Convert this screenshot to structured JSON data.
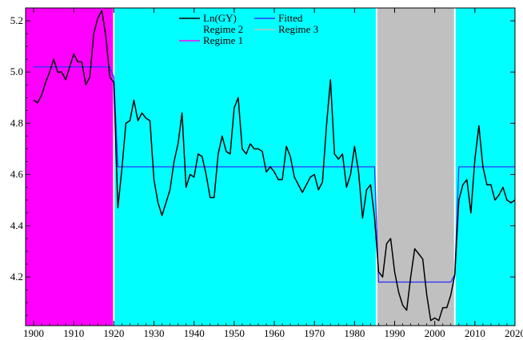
{
  "chart_data": {
    "type": "line",
    "title": "",
    "xlabel": "",
    "ylabel": "",
    "xlim": [
      1898,
      2020
    ],
    "ylim": [
      4.01,
      5.25
    ],
    "x_ticks": [
      1900,
      1910,
      1920,
      1930,
      1940,
      1950,
      1960,
      1970,
      1980,
      1990,
      2000,
      2010,
      2020
    ],
    "y_ticks": [
      4.2,
      4.4,
      4.6,
      4.8,
      5.0,
      5.2
    ],
    "y_tick_labels": [
      "4.2",
      "4.4",
      "4.6",
      "4.8",
      "5.0",
      "5.2"
    ],
    "grid": false,
    "legend_placement": "top-center",
    "regimes": [
      {
        "name": "Regime 1",
        "color": "#ff00ff",
        "start": 1898,
        "end": 1920
      },
      {
        "name": "Regime 2",
        "color": "#00ffff",
        "start": 1920,
        "end": 1985.5
      },
      {
        "name": "Regime 3",
        "color": "#c0c0c0",
        "start": 1985.5,
        "end": 2005
      },
      {
        "name": "Regime 2",
        "color": "#00ffff",
        "start": 2005,
        "end": 2020
      }
    ],
    "legend": [
      {
        "name": "Ln(GY)",
        "color": "#000000",
        "kind": "line"
      },
      {
        "name": "Fitted",
        "color": "#3333ff",
        "kind": "line"
      },
      {
        "name": "Regime 2",
        "color": "#00ffff",
        "kind": "line"
      },
      {
        "name": "Regime 3",
        "color": "#c0c0c0",
        "kind": "line"
      },
      {
        "name": "Regime 1",
        "color": "#ff00ff",
        "kind": "line"
      }
    ],
    "series": [
      {
        "name": "Ln(GY)",
        "color": "#000000",
        "x": [
          1900,
          1901,
          1902,
          1903,
          1904,
          1905,
          1906,
          1907,
          1908,
          1909,
          1910,
          1911,
          1912,
          1913,
          1914,
          1915,
          1916,
          1917,
          1918,
          1919,
          1920,
          1921,
          1922,
          1923,
          1924,
          1925,
          1926,
          1927,
          1928,
          1929,
          1930,
          1931,
          1932,
          1933,
          1934,
          1935,
          1936,
          1937,
          1938,
          1939,
          1940,
          1941,
          1942,
          1943,
          1944,
          1945,
          1946,
          1947,
          1948,
          1949,
          1950,
          1951,
          1952,
          1953,
          1954,
          1955,
          1956,
          1957,
          1958,
          1959,
          1960,
          1961,
          1962,
          1963,
          1964,
          1965,
          1966,
          1967,
          1968,
          1969,
          1970,
          1971,
          1972,
          1973,
          1974,
          1975,
          1976,
          1977,
          1978,
          1979,
          1980,
          1981,
          1982,
          1983,
          1984,
          1985,
          1986,
          1987,
          1988,
          1989,
          1990,
          1991,
          1992,
          1993,
          1994,
          1995,
          1996,
          1997,
          1998,
          1999,
          2000,
          2001,
          2002,
          2003,
          2004,
          2005,
          2006,
          2007,
          2008,
          2009,
          2010,
          2011,
          2012,
          2013,
          2014,
          2015,
          2016,
          2017,
          2018,
          2019,
          2020
        ],
        "y": [
          4.89,
          4.88,
          4.91,
          4.96,
          5.0,
          5.05,
          5.0,
          5.0,
          4.97,
          5.02,
          5.07,
          5.04,
          5.04,
          4.95,
          4.98,
          5.15,
          5.21,
          5.24,
          5.14,
          4.98,
          4.96,
          4.47,
          4.62,
          4.8,
          4.81,
          4.89,
          4.81,
          4.84,
          4.82,
          4.81,
          4.58,
          4.49,
          4.44,
          4.49,
          4.54,
          4.65,
          4.72,
          4.84,
          4.55,
          4.6,
          4.59,
          4.68,
          4.67,
          4.6,
          4.51,
          4.51,
          4.68,
          4.75,
          4.69,
          4.68,
          4.86,
          4.9,
          4.7,
          4.68,
          4.72,
          4.7,
          4.7,
          4.69,
          4.61,
          4.63,
          4.61,
          4.58,
          4.58,
          4.71,
          4.67,
          4.59,
          4.56,
          4.53,
          4.56,
          4.59,
          4.6,
          4.54,
          4.57,
          4.79,
          4.97,
          4.68,
          4.66,
          4.68,
          4.55,
          4.6,
          4.71,
          4.61,
          4.43,
          4.54,
          4.56,
          4.43,
          4.22,
          4.2,
          4.33,
          4.35,
          4.22,
          4.14,
          4.09,
          4.07,
          4.2,
          4.31,
          4.29,
          4.27,
          4.13,
          4.03,
          4.04,
          4.03,
          4.08,
          4.08,
          4.13,
          4.21,
          4.5,
          4.56,
          4.58,
          4.45,
          4.66,
          4.79,
          4.63,
          4.56,
          4.56,
          4.5,
          4.52,
          4.55,
          4.5,
          4.49,
          4.5
        ]
      },
      {
        "name": "Fitted",
        "color": "#3333ff",
        "x": [
          1900,
          1919,
          1920,
          1921,
          1985,
          1986,
          2004,
          2005,
          2006,
          2020
        ],
        "y": [
          5.02,
          5.02,
          4.98,
          4.63,
          4.63,
          4.18,
          4.18,
          4.21,
          4.63,
          4.63
        ]
      }
    ]
  }
}
